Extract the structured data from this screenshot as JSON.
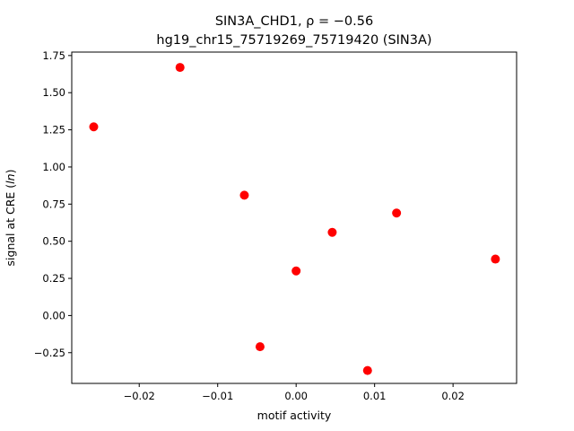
{
  "chart_data": {
    "type": "scatter",
    "title_line1": "SIN3A_CHD1, ρ = −0.56",
    "title_line2": "hg19_chr15_75719269_75719420 (SIN3A)",
    "xlabel": "motif activity",
    "ylabel": "signal at CRE (ln)",
    "ylabel_prefix": "signal at CRE (",
    "ylabel_italic": "ln",
    "ylabel_suffix": ")",
    "xlim": [
      -0.0286,
      0.0281
    ],
    "ylim": [
      -0.4569,
      1.7733
    ],
    "x_ticks": [
      -0.02,
      -0.01,
      0.0,
      0.01,
      0.02
    ],
    "x_tick_labels": [
      "−0.02",
      "−0.01",
      "0.00",
      "0.01",
      "0.02"
    ],
    "y_ticks": [
      -0.25,
      0.0,
      0.25,
      0.5,
      0.75,
      1.0,
      1.25,
      1.5,
      1.75
    ],
    "y_tick_labels": [
      "−0.25",
      "0.00",
      "0.25",
      "0.50",
      "0.75",
      "1.00",
      "1.25",
      "1.50",
      "1.75"
    ],
    "grid": false,
    "legend": "none",
    "marker_color": "#ff0000",
    "points": [
      {
        "x": -0.0258,
        "y": 1.27
      },
      {
        "x": -0.0148,
        "y": 1.67
      },
      {
        "x": -0.0066,
        "y": 0.81
      },
      {
        "x": -0.0046,
        "y": -0.21
      },
      {
        "x": 0.0,
        "y": 0.3
      },
      {
        "x": 0.0046,
        "y": 0.56
      },
      {
        "x": 0.0091,
        "y": -0.37
      },
      {
        "x": 0.0128,
        "y": 0.69
      },
      {
        "x": 0.0254,
        "y": 0.38
      }
    ]
  }
}
